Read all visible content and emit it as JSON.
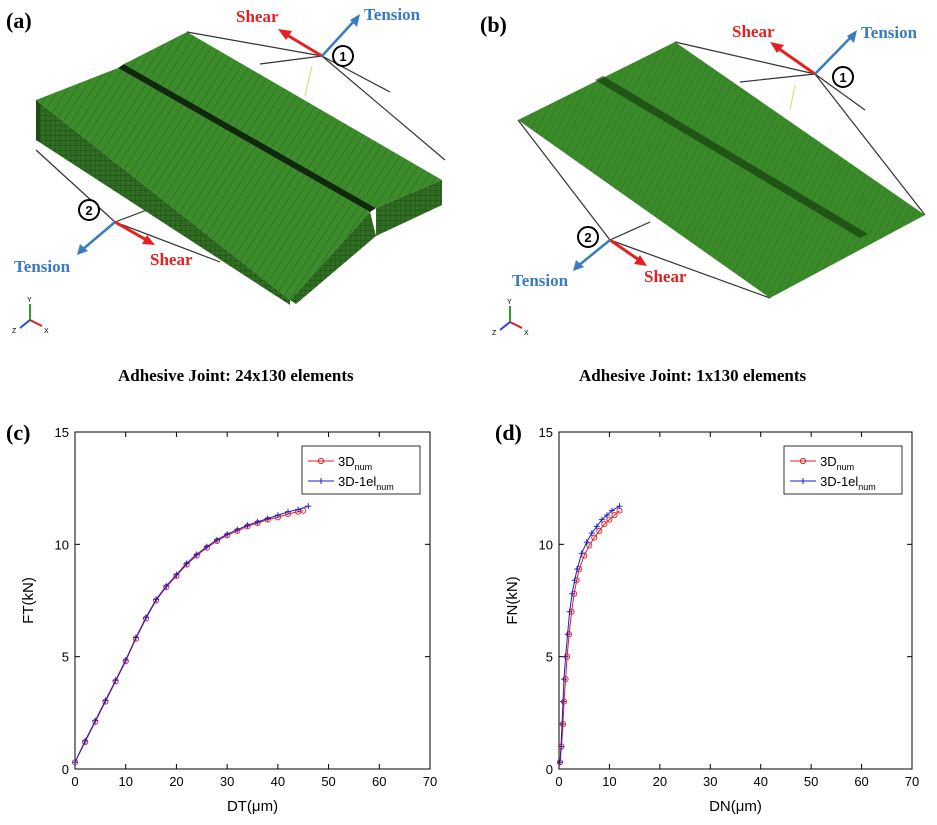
{
  "panels": {
    "a": {
      "label": "(a)",
      "caption": "Adhesive Joint: 24x130 elements",
      "shear1": "Shear",
      "tension1": "Tension",
      "marker1": "1",
      "shear2": "Shear",
      "tension2": "Tension",
      "marker2": "2",
      "triad": {
        "y": "Y",
        "z": "Z",
        "x": "X"
      }
    },
    "b": {
      "label": "(b)",
      "caption": "Adhesive Joint: 1x130 elements",
      "shear1": "Shear",
      "tension1": "Tension",
      "marker1": "1",
      "shear2": "Shear",
      "tension2": "Tension",
      "marker2": "2",
      "triad": {
        "y": "Y",
        "z": "Z",
        "x": "X"
      }
    },
    "c": {
      "label": "(c)"
    },
    "d": {
      "label": "(d)"
    }
  },
  "colors": {
    "mesh": "#3a8a2a",
    "meshDark": "#1e4e12",
    "shear": "#e62020",
    "tension": "#3b7bbf",
    "series1": "#e02020",
    "series2": "#1a1acc"
  },
  "chart_data": [
    {
      "type": "line",
      "xlabel": "DT(μm)",
      "ylabel": "FT(kN)",
      "xlim": [
        0,
        70
      ],
      "ylim": [
        0,
        15
      ],
      "xticks": [
        0,
        10,
        20,
        30,
        40,
        50,
        60,
        70
      ],
      "yticks": [
        0,
        5,
        10,
        15
      ],
      "legend_position": "top-right",
      "series": [
        {
          "name": "3D",
          "sub": "num",
          "marker": "circle",
          "x": [
            0,
            2,
            4,
            6,
            8,
            10,
            12,
            14,
            16,
            18,
            20,
            22,
            24,
            26,
            28,
            30,
            32,
            34,
            36,
            38,
            40,
            42,
            44,
            45
          ],
          "y": [
            0.3,
            1.2,
            2.1,
            3.0,
            3.9,
            4.8,
            5.8,
            6.7,
            7.5,
            8.1,
            8.6,
            9.1,
            9.5,
            9.85,
            10.15,
            10.4,
            10.6,
            10.8,
            10.95,
            11.1,
            11.2,
            11.35,
            11.45,
            11.5
          ]
        },
        {
          "name": "3D-1el",
          "sub": "num",
          "marker": "plus",
          "x": [
            0,
            2,
            4,
            6,
            8,
            10,
            12,
            14,
            16,
            18,
            20,
            22,
            24,
            26,
            28,
            30,
            32,
            34,
            36,
            38,
            40,
            42,
            44,
            46
          ],
          "y": [
            0.3,
            1.25,
            2.15,
            3.05,
            3.95,
            4.85,
            5.85,
            6.75,
            7.55,
            8.15,
            8.65,
            9.15,
            9.55,
            9.9,
            10.2,
            10.45,
            10.65,
            10.85,
            11.0,
            11.15,
            11.3,
            11.45,
            11.55,
            11.7
          ]
        }
      ]
    },
    {
      "type": "line",
      "xlabel": "DN(μm)",
      "ylabel": "FN(kN)",
      "xlim": [
        0,
        70
      ],
      "ylim": [
        0,
        15
      ],
      "xticks": [
        0,
        10,
        20,
        30,
        40,
        50,
        60,
        70
      ],
      "yticks": [
        0,
        5,
        10,
        15
      ],
      "legend_position": "top-right",
      "series": [
        {
          "name": "3D",
          "sub": "num",
          "marker": "circle",
          "x": [
            0.2,
            0.5,
            0.8,
            1.0,
            1.3,
            1.6,
            2.0,
            2.5,
            3.0,
            3.5,
            4.0,
            5.0,
            6.0,
            7.0,
            8.0,
            9.0,
            10.0,
            11.0,
            12.0
          ],
          "y": [
            0.3,
            1.0,
            2.0,
            3.0,
            4.0,
            5.0,
            6.0,
            7.0,
            7.8,
            8.4,
            8.9,
            9.5,
            9.95,
            10.3,
            10.6,
            10.9,
            11.1,
            11.3,
            11.5
          ]
        },
        {
          "name": "3D-1el",
          "sub": "num",
          "marker": "plus",
          "x": [
            0.2,
            0.4,
            0.6,
            0.8,
            1.0,
            1.3,
            1.7,
            2.1,
            2.6,
            3.1,
            3.6,
            4.5,
            5.5,
            6.5,
            7.5,
            8.5,
            9.5,
            10.5,
            12.0
          ],
          "y": [
            0.3,
            1.0,
            2.0,
            3.0,
            4.0,
            5.0,
            6.0,
            7.0,
            7.8,
            8.4,
            8.9,
            9.6,
            10.1,
            10.5,
            10.8,
            11.1,
            11.3,
            11.5,
            11.7
          ]
        }
      ]
    }
  ]
}
